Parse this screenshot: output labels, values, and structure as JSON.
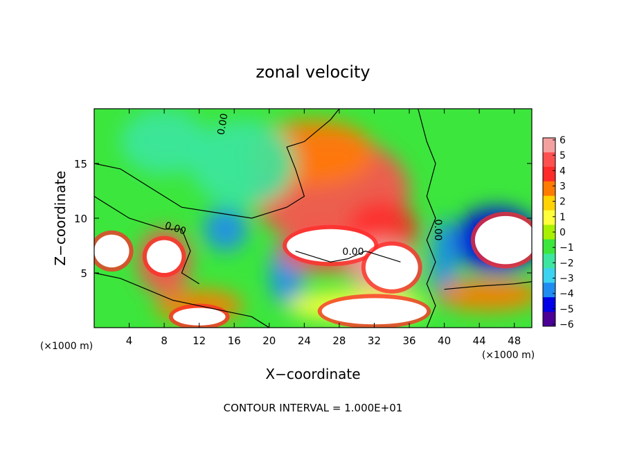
{
  "chart_data": {
    "type": "heatmap",
    "title": "zonal velocity",
    "xlabel": "X−coordinate",
    "ylabel": "Z−coordinate",
    "x_units_left": "(×1000 m)",
    "x_units_right": "(×1000 m)",
    "footer": "CONTOUR INTERVAL = 1.000E+01",
    "xlim": [
      0,
      50
    ],
    "ylim": [
      0,
      20
    ],
    "x_ticks": [
      4,
      8,
      12,
      16,
      20,
      24,
      28,
      32,
      36,
      40,
      44,
      48
    ],
    "x_tick_labels": [
      "4",
      "8",
      "12",
      "16",
      "20",
      "24",
      "28",
      "32",
      "36",
      "40",
      "44",
      "48"
    ],
    "y_ticks": [
      5,
      10,
      15
    ],
    "y_tick_labels": [
      "5",
      "10",
      "15"
    ],
    "colorbar": {
      "min": -6,
      "max": 6,
      "tick_labels": [
        "6",
        "5",
        "4",
        "3",
        "2",
        "1",
        "0",
        "−1",
        "−2",
        "−3",
        "−4",
        "−5",
        "−6"
      ],
      "colors": [
        "#f5a0a0",
        "#ff5050",
        "#ff2a2a",
        "#ff7a00",
        "#ffd200",
        "#ffff3c",
        "#a8f000",
        "#3ce63c",
        "#3ce6a0",
        "#3cd2f0",
        "#1e8cf0",
        "#0000e6",
        "#4b0096"
      ]
    },
    "contour_labels": [
      "0.00",
      "0.00",
      "0.00",
      "0.00"
    ],
    "field_blobs": [
      {
        "x": 27,
        "y": 12.5,
        "rx": 9,
        "ry": 5,
        "v": 4.6
      },
      {
        "x": 25,
        "y": 16,
        "rx": 7,
        "ry": 3,
        "v": 3.2
      },
      {
        "x": 33,
        "y": 9,
        "rx": 4,
        "ry": 2.5,
        "v": 3.5
      },
      {
        "x": 17,
        "y": 15,
        "rx": 6,
        "ry": 4,
        "v": -1.5
      },
      {
        "x": 8,
        "y": 17,
        "rx": 5,
        "ry": 3,
        "v": -2.2
      },
      {
        "x": 46,
        "y": 8,
        "rx": 5,
        "ry": 3,
        "v": -4.2
      },
      {
        "x": 40,
        "y": 6,
        "rx": 1.5,
        "ry": 4,
        "v": -4
      },
      {
        "x": 15,
        "y": 9,
        "rx": 2.5,
        "ry": 2,
        "v": -3.8
      },
      {
        "x": 22,
        "y": 5,
        "rx": 2,
        "ry": 3,
        "v": -3.5
      },
      {
        "x": 45,
        "y": 3,
        "rx": 6,
        "ry": 1.5,
        "v": 2.5
      },
      {
        "x": 8,
        "y": 6,
        "rx": 3,
        "ry": 3,
        "v": 4.5
      },
      {
        "x": 27,
        "y": 7,
        "rx": 6,
        "ry": 2,
        "v": 5
      },
      {
        "x": 33,
        "y": 5.5,
        "rx": 4,
        "ry": 2.5,
        "v": 5.2
      },
      {
        "x": 30,
        "y": 2,
        "rx": 8,
        "ry": 1.5,
        "v": 1
      },
      {
        "x": 12,
        "y": 2,
        "rx": 5,
        "ry": 1.5,
        "v": 3
      }
    ],
    "extreme_regions": [
      {
        "sign": "positive",
        "x": 8,
        "y": 6.5,
        "rx": 2,
        "ry": 1.5
      },
      {
        "sign": "positive",
        "x": 27,
        "y": 7.5,
        "rx": 5,
        "ry": 1.5
      },
      {
        "sign": "positive",
        "x": 34,
        "y": 5.5,
        "rx": 3,
        "ry": 2
      },
      {
        "sign": "positive",
        "x": 2,
        "y": 7,
        "rx": 2,
        "ry": 1.5
      },
      {
        "sign": "positive",
        "x": 47,
        "y": 8,
        "rx": 3.5,
        "ry": 2.2
      },
      {
        "sign": "positive",
        "x": 32,
        "y": 1.5,
        "rx": 6,
        "ry": 1.2
      },
      {
        "sign": "positive",
        "x": 12,
        "y": 1,
        "rx": 3,
        "ry": 0.8
      }
    ]
  }
}
